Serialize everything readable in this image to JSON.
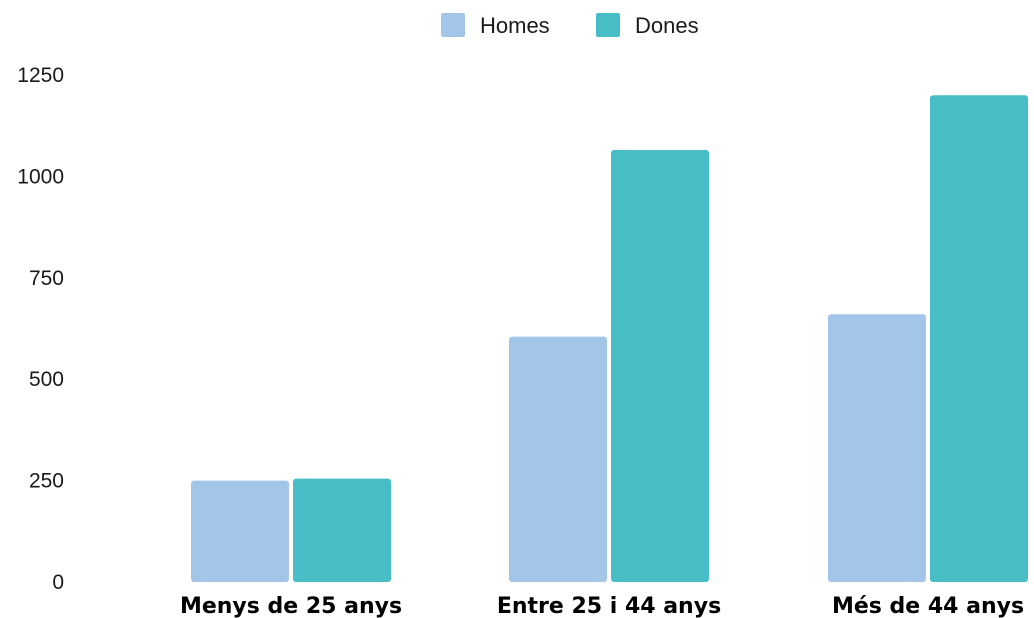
{
  "chart_data": {
    "type": "bar",
    "categories": [
      "Menys de 25 anys",
      "Entre 25 i 44 anys",
      "Més de 44 anys"
    ],
    "series": [
      {
        "name": "Homes",
        "values": [
          250,
          605,
          660
        ],
        "color": "#a3c6e8"
      },
      {
        "name": "Dones",
        "values": [
          255,
          1065,
          1200
        ],
        "color": "#47bdc6"
      }
    ],
    "yticks": [
      "0",
      "250",
      "500",
      "750",
      "1000",
      "1250"
    ],
    "ylim": [
      0,
      1250
    ],
    "grid": false,
    "legend": "top-center",
    "title": "",
    "xlabel": "",
    "ylabel": ""
  }
}
